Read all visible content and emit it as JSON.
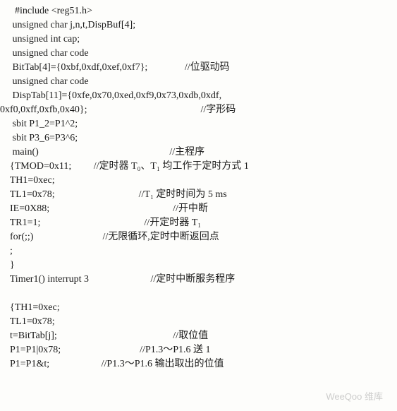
{
  "lines": [
    {
      "code": "      #include <reg51.h>",
      "cmt": ""
    },
    {
      "code": "     unsigned char j,n,t,DispBuf[4];",
      "cmt": ""
    },
    {
      "code": "     unsigned int cap;",
      "cmt": ""
    },
    {
      "code": "     unsigned char code",
      "cmt": ""
    },
    {
      "code": "     BitTab[4]={0xbf,0xdf,0xef,0xf7};",
      "cmt": "               //位驱动码"
    },
    {
      "code": "     unsigned char code",
      "cmt": ""
    },
    {
      "code": "     DispTab[11]={0xfe,0x70,0xed,0xf9,0x73,0xdb,0xdf,",
      "cmt": ""
    },
    {
      "code": "0xf0,0xff,0xfb,0x40};",
      "cmt": "                                              //字形码"
    },
    {
      "code": "     sbit P1_2=P1^2;",
      "cmt": ""
    },
    {
      "code": "     sbit P3_6=P3^6;",
      "cmt": ""
    },
    {
      "code": "     main()",
      "cmt": "                                                     //主程序"
    },
    {
      "code": "    {TMOD=0x11;",
      "cmt": "         //定时器 T₀、T₁ 均工作于定时方式 1"
    },
    {
      "code": "    TH1=0xec;",
      "cmt": ""
    },
    {
      "code": "    TL1=0x78;",
      "cmt": "                                  //T₁ 定时时间为 5 ms"
    },
    {
      "code": "    IE=0X88;",
      "cmt": "                                                  //开中断"
    },
    {
      "code": "    TR1=1;",
      "cmt": "                                          //开定时器 T₁"
    },
    {
      "code": "    for(;;)",
      "cmt": "                            //无限循环,定时中断返回点"
    },
    {
      "code": "    ;",
      "cmt": ""
    },
    {
      "code": "    }",
      "cmt": ""
    },
    {
      "code": "    Timer1() interrupt 3",
      "cmt": "                         //定时中断服务程序"
    },
    {
      "code": "",
      "cmt": ""
    },
    {
      "code": "    {TH1=0xec;",
      "cmt": ""
    },
    {
      "code": "    TL1=0x78;",
      "cmt": ""
    },
    {
      "code": "    t=BitTab[j];",
      "cmt": "                                               //取位值"
    },
    {
      "code": "    P1=P1|0x78;",
      "cmt": "                                //P1.3～P1.6 送 1"
    },
    {
      "code": "    P1=P1&t;",
      "cmt": "                     //P1.3～P1.6 输出取出的位值"
    }
  ],
  "watermark": "WeeQoo 维库"
}
